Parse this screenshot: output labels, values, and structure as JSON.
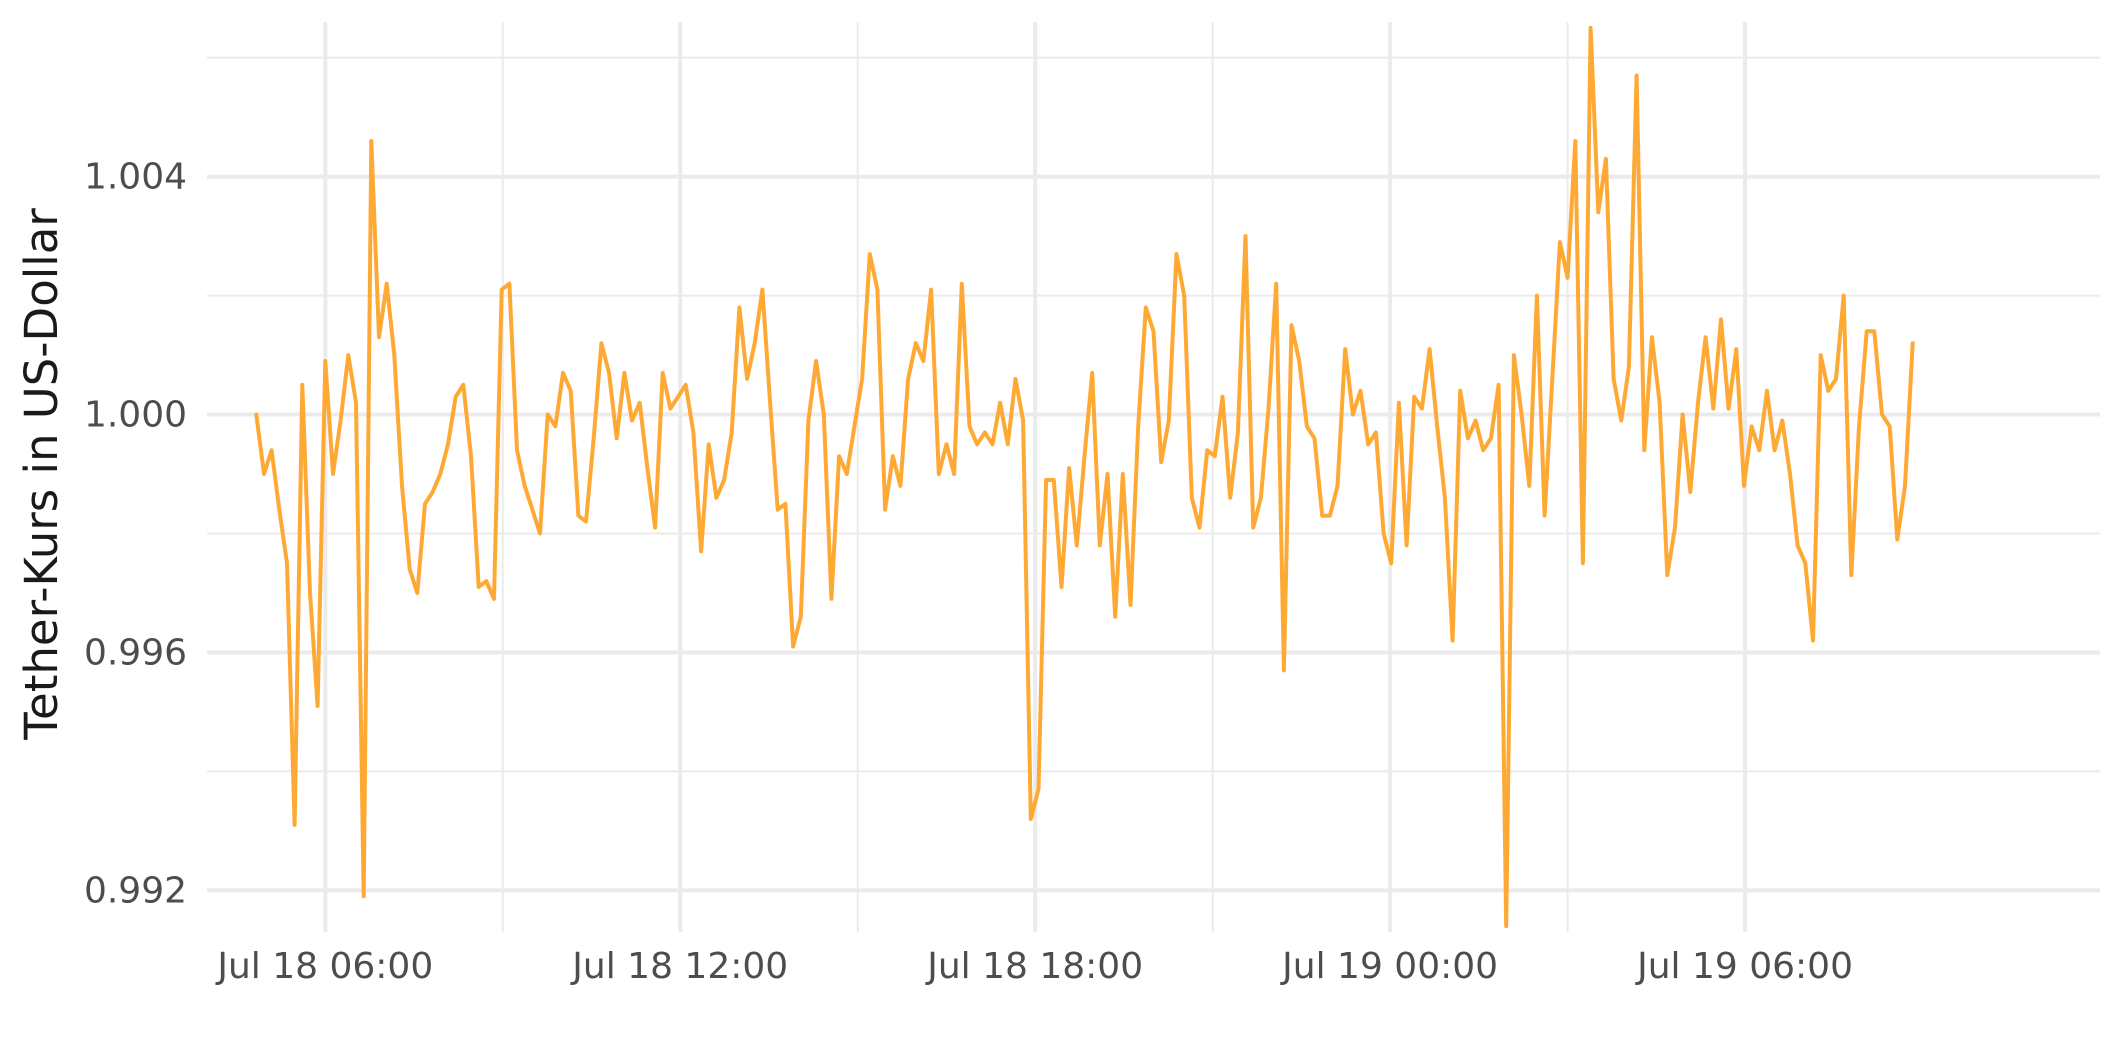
{
  "chart_data": {
    "type": "line",
    "title": "",
    "xlabel": "",
    "ylabel": "Tether-Kurs in US-Dollar",
    "grid": true,
    "legend": "none",
    "x_start": "2018-07-18T04:50:00",
    "x_end": "2018-07-19T08:50:00",
    "xlim": [
      "2018-07-18T04:00:00",
      "2018-07-19T12:00:00"
    ],
    "ylim": [
      0.9913,
      1.0066
    ],
    "y_ticks": [
      {
        "value": 0.992,
        "label": "0.992"
      },
      {
        "value": 0.996,
        "label": "0.996"
      },
      {
        "value": 1.0,
        "label": "1.000"
      },
      {
        "value": 1.004,
        "label": "1.004"
      }
    ],
    "y_minor_ticks": [
      0.994,
      0.998,
      1.002,
      1.006
    ],
    "x_ticks": [
      {
        "value": "2018-07-18T06:00:00",
        "label": "Jul 18 06:00"
      },
      {
        "value": "2018-07-18T12:00:00",
        "label": "Jul 18 12:00"
      },
      {
        "value": "2018-07-18T18:00:00",
        "label": "Jul 18 18:00"
      },
      {
        "value": "2018-07-19T00:00:00",
        "label": "Jul 19 00:00"
      },
      {
        "value": "2018-07-19T06:00:00",
        "label": "Jul 19 06:00"
      }
    ],
    "x_minor_ticks": [
      "2018-07-18T09:00:00",
      "2018-07-18T15:00:00",
      "2018-07-18T21:00:00",
      "2018-07-19T03:00:00"
    ],
    "colors": {
      "line": "#FFA935",
      "grid": "#ebebeb",
      "text": "#4d4d4d"
    },
    "series": [
      {
        "values": [
          1.0,
          0.999,
          0.9994,
          0.9984,
          0.9975,
          0.9931,
          1.0005,
          0.997,
          0.9951,
          1.0009,
          0.999,
          0.9999,
          1.001,
          1.0002,
          0.9919,
          1.0046,
          1.0013,
          1.0022,
          1.001,
          0.9988,
          0.9974,
          0.997,
          0.9985,
          0.9987,
          0.999,
          0.9995,
          1.0003,
          1.0005,
          0.9993,
          0.9971,
          0.9972,
          0.9969,
          1.0021,
          1.0022,
          0.9994,
          0.9988,
          0.9984,
          0.998,
          1.0,
          0.9998,
          1.0007,
          1.0004,
          0.9983,
          0.9982,
          0.9996,
          1.0012,
          1.0007,
          0.9996,
          1.0007,
          0.9999,
          1.0002,
          0.9991,
          0.9981,
          1.0007,
          1.0001,
          1.0003,
          1.0005,
          0.9997,
          0.9977,
          0.9995,
          0.9986,
          0.9989,
          0.9997,
          1.0018,
          1.0006,
          1.0012,
          1.0021,
          1.0002,
          0.9984,
          0.9985,
          0.9961,
          0.9966,
          0.9999,
          1.0009,
          1.0,
          0.9969,
          0.9993,
          0.999,
          0.9998,
          1.0006,
          1.0027,
          1.0021,
          0.9984,
          0.9993,
          0.9988,
          1.0006,
          1.0012,
          1.0009,
          1.0021,
          0.999,
          0.9995,
          0.999,
          1.0022,
          0.9998,
          0.9995,
          0.9997,
          0.9995,
          1.0002,
          0.9995,
          1.0006,
          0.9999,
          0.9932,
          0.9937,
          0.9989,
          0.9989,
          0.9971,
          0.9991,
          0.9978,
          0.9993,
          1.0007,
          0.9978,
          0.999,
          0.9966,
          0.999,
          0.9968,
          0.9998,
          1.0018,
          1.0014,
          0.9992,
          0.9999,
          1.0027,
          1.002,
          0.9986,
          0.9981,
          0.9994,
          0.9993,
          1.0003,
          0.9986,
          0.9997,
          1.003,
          0.9981,
          0.9986,
          1.0001,
          1.0022,
          0.9957,
          1.0015,
          1.0009,
          0.9998,
          0.9996,
          0.9983,
          0.9983,
          0.9988,
          1.0011,
          1.0,
          1.0004,
          0.9995,
          0.9997,
          0.998,
          0.9975,
          1.0002,
          0.9978,
          1.0003,
          1.0001,
          1.0011,
          0.9998,
          0.9986,
          0.9962,
          1.0004,
          0.9996,
          0.9999,
          0.9994,
          0.9996,
          1.0005,
          0.9914,
          1.001,
          1.0,
          0.9988,
          1.002,
          0.9983,
          1.0006,
          1.0029,
          1.0023,
          1.0046,
          0.9975,
          1.0065,
          1.0034,
          1.0043,
          1.0006,
          0.9999,
          1.0008,
          1.0057,
          0.9994,
          1.0013,
          1.0002,
          0.9973,
          0.9981,
          1.0,
          0.9987,
          1.0002,
          1.0013,
          1.0001,
          1.0016,
          1.0001,
          1.0011,
          0.9988,
          0.9998,
          0.9994,
          1.0004,
          0.9994,
          0.9999,
          0.999,
          0.9978,
          0.9975,
          0.9962,
          1.001,
          1.0004,
          1.0006,
          1.002,
          0.9973,
          0.9998,
          1.0014,
          1.0014,
          1.0,
          0.9998,
          0.9979,
          0.9988,
          1.0012
        ]
      }
    ]
  }
}
